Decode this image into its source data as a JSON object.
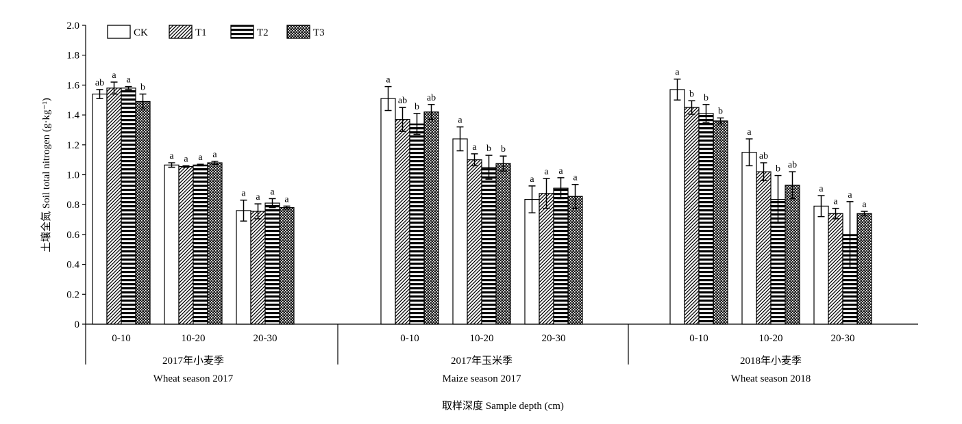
{
  "chart_data": {
    "type": "bar",
    "ylabel": "土壤全氮 Soil total nitrogen (g·kg⁻¹)",
    "xlabel": "取样深度 Sample depth (cm)",
    "ylim": [
      0,
      2.0
    ],
    "yticks": [
      "0",
      "0.2",
      "0.4",
      "0.6",
      "0.8",
      "1.0",
      "1.2",
      "1.4",
      "1.6",
      "1.8",
      "2.0"
    ],
    "legend_position": "top-left",
    "series": [
      {
        "name": "CK",
        "pattern": "open"
      },
      {
        "name": "T1",
        "pattern": "diagonal"
      },
      {
        "name": "T2",
        "pattern": "horizontal"
      },
      {
        "name": "T3",
        "pattern": "dotted"
      }
    ],
    "groups": [
      {
        "label_cn": "2017年小麦季",
        "label_en": "Wheat season 2017",
        "depths": [
          {
            "depth": "0-10",
            "values": [
              1.54,
              1.58,
              1.58,
              1.49
            ],
            "errors": [
              0.03,
              0.04,
              0.01,
              0.05
            ],
            "letters": [
              "ab",
              "a",
              "a",
              "b"
            ]
          },
          {
            "depth": "10-20",
            "values": [
              1.065,
              1.055,
              1.065,
              1.08
            ],
            "errors": [
              0.015,
              0.005,
              0.005,
              0.01
            ],
            "letters": [
              "a",
              "a",
              "a",
              "a"
            ]
          },
          {
            "depth": "20-30",
            "values": [
              0.76,
              0.755,
              0.81,
              0.78
            ],
            "errors": [
              0.07,
              0.05,
              0.03,
              0.01
            ],
            "letters": [
              "a",
              "a",
              "a",
              "a"
            ]
          }
        ]
      },
      {
        "label_cn": "2017年玉米季",
        "label_en": "Maize season 2017",
        "depths": [
          {
            "depth": "0-10",
            "values": [
              1.51,
              1.37,
              1.34,
              1.42
            ],
            "errors": [
              0.08,
              0.08,
              0.07,
              0.05
            ],
            "letters": [
              "a",
              "ab",
              "b",
              "ab"
            ]
          },
          {
            "depth": "10-20",
            "values": [
              1.24,
              1.1,
              1.05,
              1.075
            ],
            "errors": [
              0.08,
              0.04,
              0.08,
              0.05
            ],
            "letters": [
              "a",
              "a",
              "b",
              "b"
            ]
          },
          {
            "depth": "20-30",
            "values": [
              0.835,
              0.875,
              0.91,
              0.855
            ],
            "errors": [
              0.09,
              0.1,
              0.07,
              0.08
            ],
            "letters": [
              "a",
              "a",
              "a",
              "a"
            ]
          }
        ]
      },
      {
        "label_cn": "2018年小麦季",
        "label_en": "Wheat season 2018",
        "depths": [
          {
            "depth": "0-10",
            "values": [
              1.57,
              1.45,
              1.41,
              1.36
            ],
            "errors": [
              0.07,
              0.045,
              0.06,
              0.02
            ],
            "letters": [
              "a",
              "b",
              "b",
              "b"
            ]
          },
          {
            "depth": "10-20",
            "values": [
              1.15,
              1.02,
              0.835,
              0.93
            ],
            "errors": [
              0.09,
              0.06,
              0.16,
              0.09
            ],
            "letters": [
              "a",
              "ab",
              "b",
              "ab"
            ]
          },
          {
            "depth": "20-30",
            "values": [
              0.79,
              0.74,
              0.6,
              0.74
            ],
            "errors": [
              0.07,
              0.035,
              0.22,
              0.015
            ],
            "letters": [
              "a",
              "a",
              "a",
              "a"
            ]
          }
        ]
      }
    ]
  }
}
